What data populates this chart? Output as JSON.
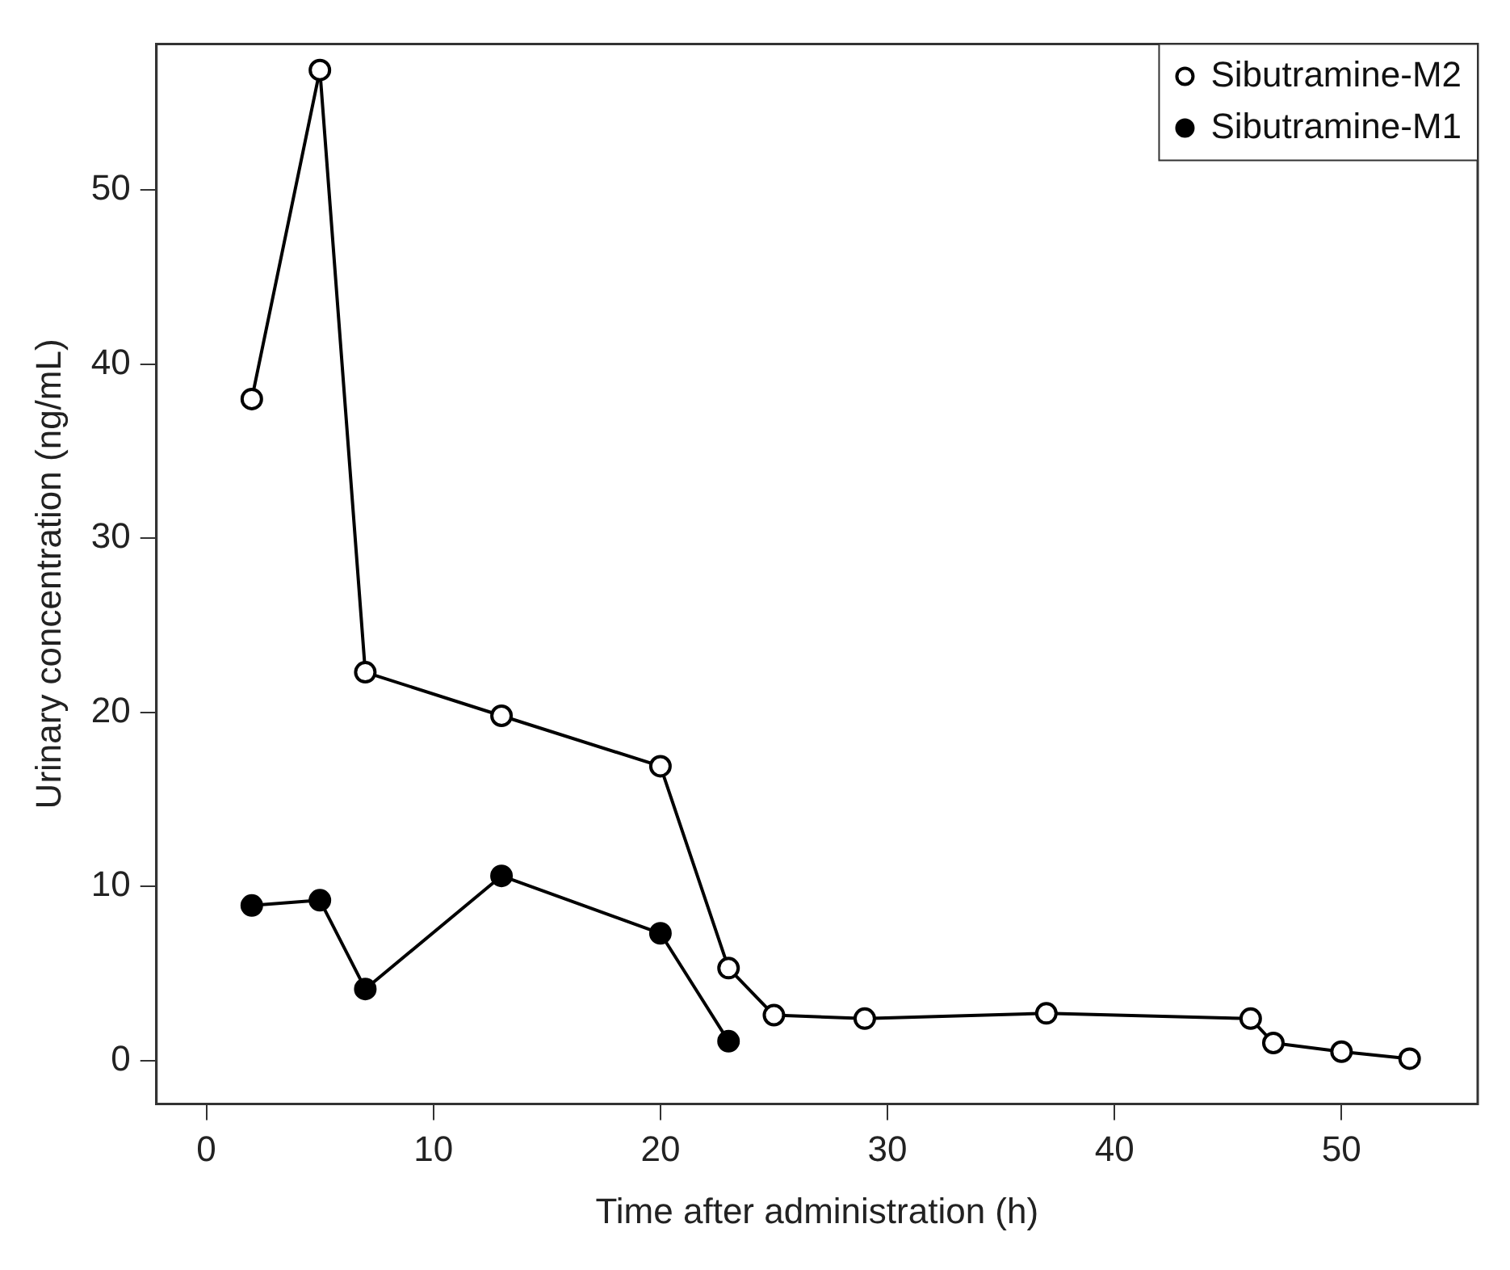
{
  "chart_data": {
    "type": "line",
    "xlabel": "Time after administration (h)",
    "ylabel": "Urinary concentration (ng/mL)",
    "xlim": [
      -2.2,
      56
    ],
    "ylim": [
      -2.5,
      58.4
    ],
    "xticks": [
      0,
      10,
      20,
      30,
      40,
      50
    ],
    "yticks": [
      0,
      10,
      20,
      30,
      40,
      50
    ],
    "grid": false,
    "legend": "top right",
    "marker": "circle",
    "series": [
      {
        "name": "Sibutramine-M2",
        "color": "#000000",
        "x": [
          2,
          5,
          7,
          13,
          20,
          23,
          25,
          29,
          37,
          46,
          47,
          50,
          53
        ],
        "values": [
          38.0,
          56.9,
          22.3,
          19.8,
          16.9,
          5.3,
          2.6,
          2.4,
          2.7,
          2.4,
          1.0,
          0.5,
          0.1
        ]
      },
      {
        "name": "Sibutramine-M1",
        "color": "#000000",
        "x": [
          2,
          5,
          7,
          13,
          20,
          23
        ],
        "values": [
          8.9,
          9.2,
          4.1,
          10.6,
          7.3,
          1.1
        ]
      }
    ]
  }
}
